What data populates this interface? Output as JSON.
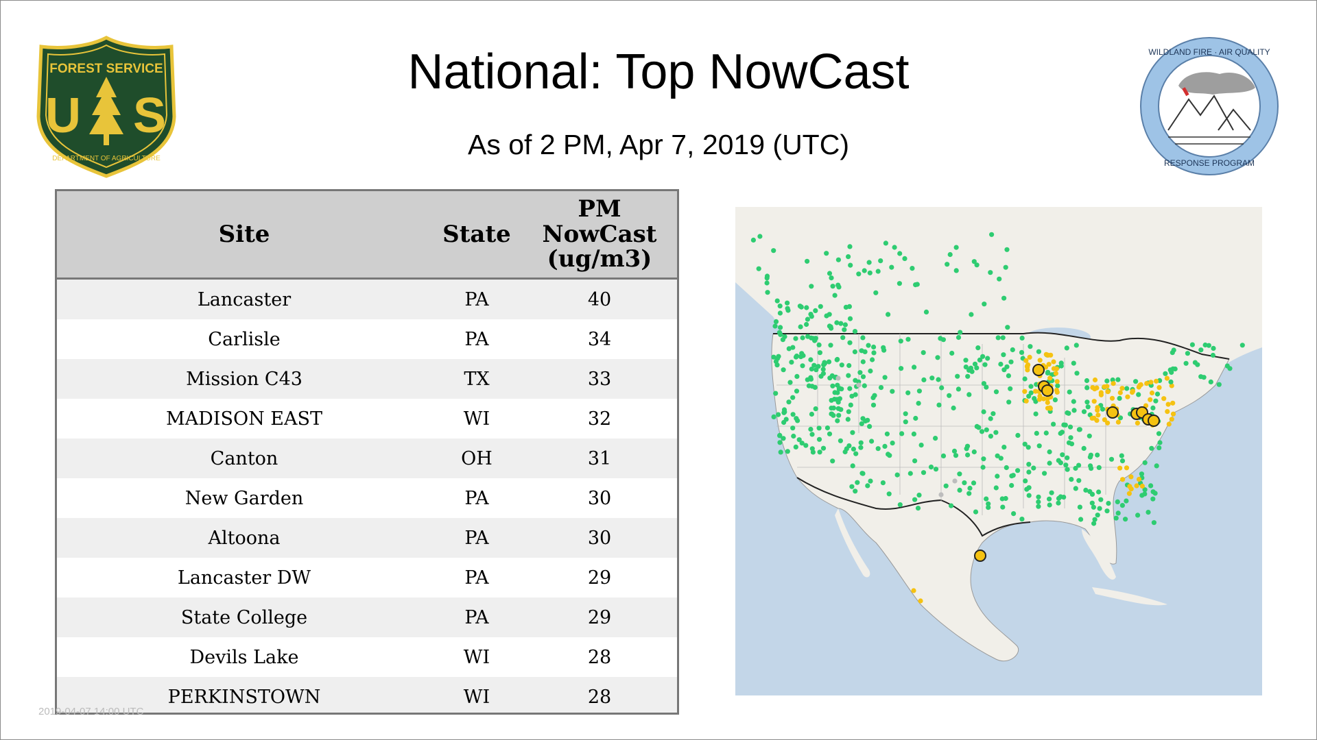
{
  "header": {
    "title": "National: Top NowCast",
    "subtitle": "As of  2 PM, Apr  7, 2019 (UTC)"
  },
  "logos": {
    "left": {
      "top_text": "FOREST SERVICE",
      "mark": "US",
      "bottom_text": "DEPARTMENT OF AGRICULTURE",
      "colors": {
        "shield": "#1f4d2b",
        "border": "#e8c43a"
      }
    },
    "right": {
      "top_text": "WILDLAND FIRE · AIR QUALITY",
      "bottom_text": "RESPONSE PROGRAM",
      "colors": {
        "ring": "#9ec3e6"
      }
    }
  },
  "table": {
    "headers": {
      "site": "Site",
      "state": "State",
      "pm": [
        "PM",
        "NowCast",
        "(ug/m3)"
      ]
    },
    "rows": [
      {
        "site": "Lancaster",
        "state": "PA",
        "value": "40"
      },
      {
        "site": "Carlisle",
        "state": "PA",
        "value": "34"
      },
      {
        "site": "Mission C43",
        "state": "TX",
        "value": "33"
      },
      {
        "site": "MADISON EAST",
        "state": "WI",
        "value": "32"
      },
      {
        "site": "Canton",
        "state": "OH",
        "value": "31"
      },
      {
        "site": "New Garden",
        "state": "PA",
        "value": "30"
      },
      {
        "site": "Altoona",
        "state": "PA",
        "value": "30"
      },
      {
        "site": "Lancaster DW",
        "state": "PA",
        "value": "29"
      },
      {
        "site": "State College",
        "state": "PA",
        "value": "29"
      },
      {
        "site": "Devils Lake",
        "state": "WI",
        "value": "28"
      },
      {
        "site": "PERKINSTOWN",
        "state": "WI",
        "value": "28"
      }
    ]
  },
  "footer": {
    "text": "2019-04-07 14:00 UTC"
  },
  "map": {
    "colors": {
      "water": "#c3d6e8",
      "land": "#f1efe9",
      "good": "#2ecc71",
      "moderate": "#f5c211",
      "nodata": "#bdbdbd",
      "border": "#222222"
    }
  }
}
